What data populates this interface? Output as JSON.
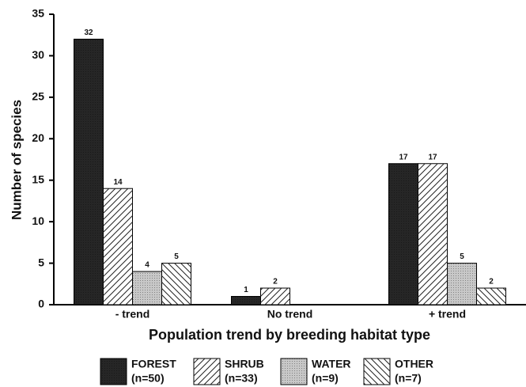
{
  "chart_data": {
    "type": "bar",
    "x_label": "Population trend by breeding habitat type",
    "y_label": "Number of species",
    "categories": [
      "- trend",
      "No trend",
      "+ trend"
    ],
    "series": [
      {
        "name": "FOREST",
        "count_label": "(n=50)",
        "color": "#262626",
        "pattern": "stipple",
        "values": [
          32,
          1,
          17
        ]
      },
      {
        "name": "SHRUB",
        "count_label": "(n=33)",
        "color": "#ffffff",
        "pattern": "forward",
        "values": [
          14,
          2,
          17
        ]
      },
      {
        "name": "WATER",
        "count_label": "(n=9)",
        "color": "#c8c8c8",
        "pattern": "stipple",
        "values": [
          4,
          null,
          5
        ]
      },
      {
        "name": "OTHER",
        "count_label": "(n=7)",
        "color": "#ffffff",
        "pattern": "back",
        "values": [
          5,
          null,
          2
        ]
      }
    ],
    "ylim": [
      0,
      35
    ],
    "yticks": [
      0,
      5,
      10,
      15,
      20,
      25,
      30,
      35
    ],
    "legend": "bottom"
  }
}
